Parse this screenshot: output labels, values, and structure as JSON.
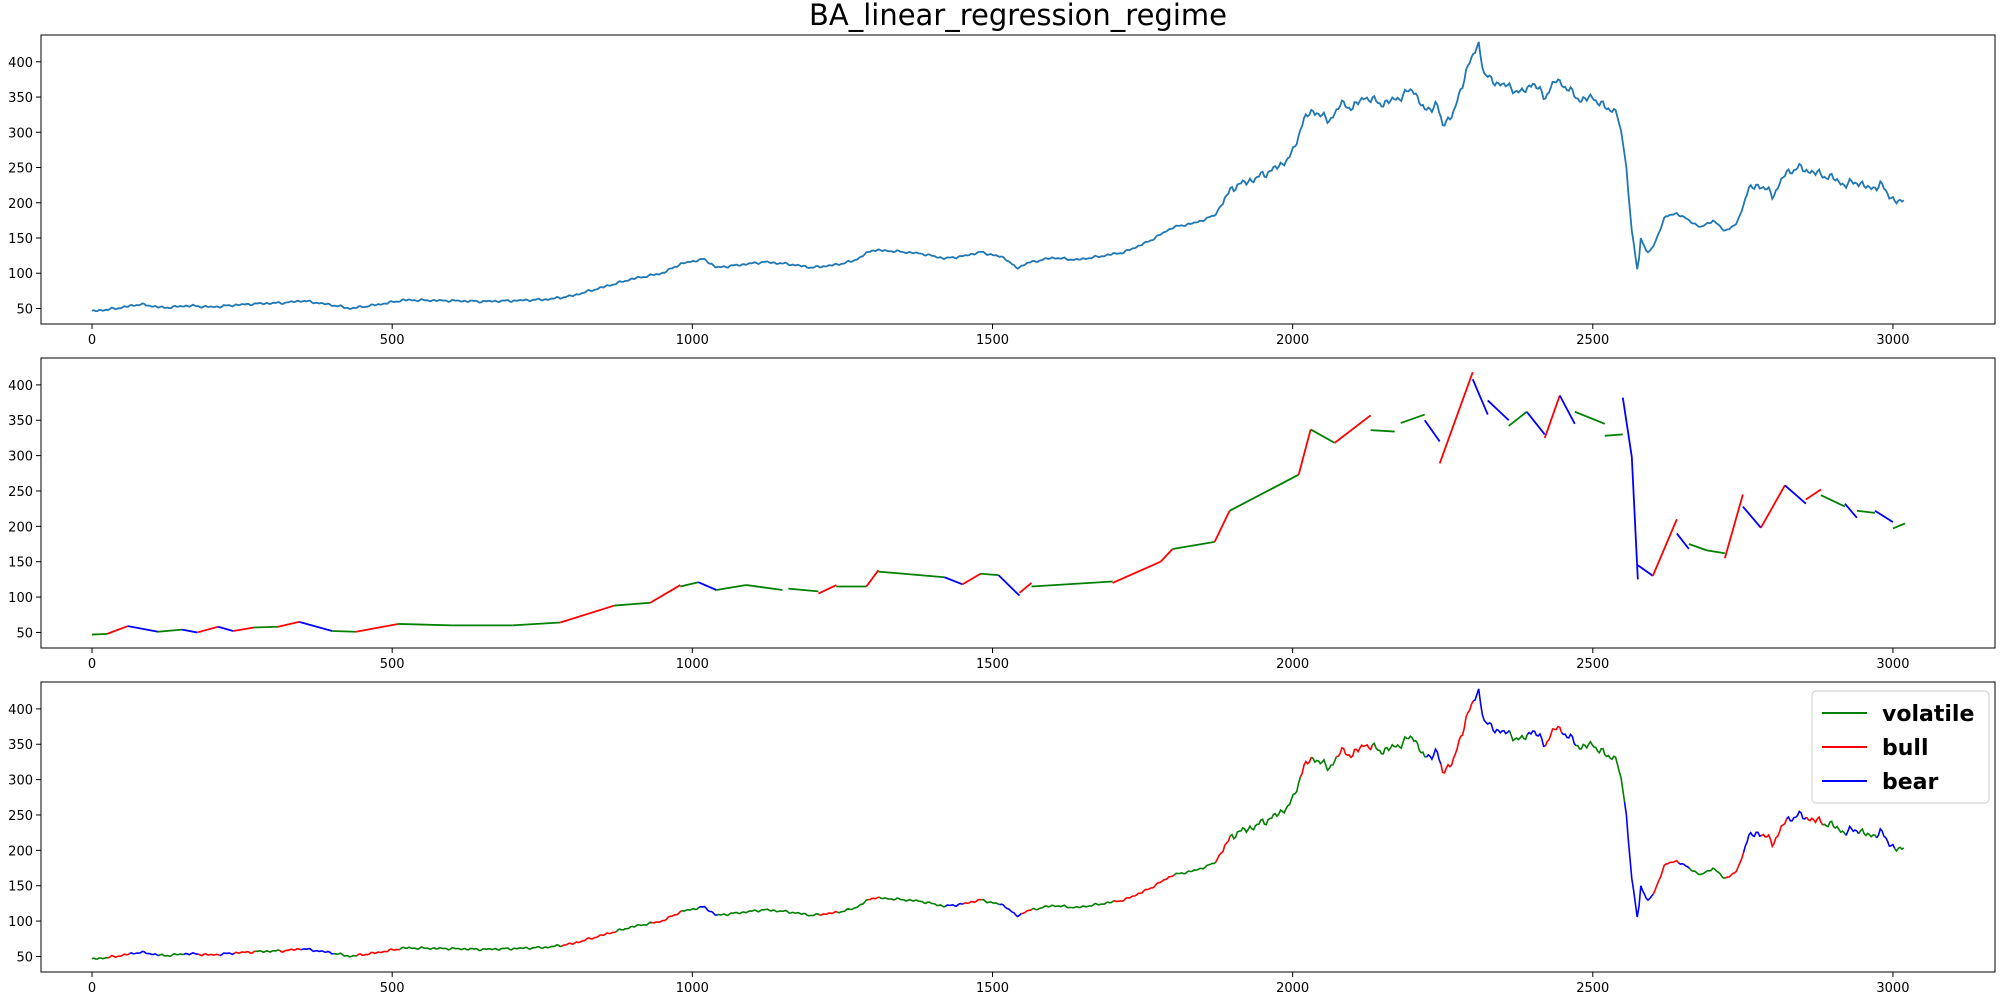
{
  "chart_data": {
    "type": "line",
    "title": "BA_linear_regression_regime",
    "xlim": [
      -85,
      3170
    ],
    "x_ticks": [
      0,
      500,
      1000,
      1500,
      2000,
      2500,
      3000
    ],
    "grid": false,
    "colors": {
      "price": "#1f77b4",
      "volatile": "#008000",
      "bull": "#ff0000",
      "bear": "#0000ff"
    },
    "price_anchors": [
      [
        0,
        46
      ],
      [
        40,
        50
      ],
      [
        80,
        56
      ],
      [
        120,
        51
      ],
      [
        160,
        54
      ],
      [
        200,
        52
      ],
      [
        240,
        55
      ],
      [
        280,
        57
      ],
      [
        320,
        58
      ],
      [
        350,
        61
      ],
      [
        400,
        55
      ],
      [
        430,
        50
      ],
      [
        480,
        56
      ],
      [
        520,
        62
      ],
      [
        600,
        61
      ],
      [
        650,
        60
      ],
      [
        700,
        61
      ],
      [
        760,
        63
      ],
      [
        800,
        68
      ],
      [
        850,
        80
      ],
      [
        900,
        92
      ],
      [
        950,
        100
      ],
      [
        980,
        113
      ],
      [
        1000,
        117
      ],
      [
        1020,
        120
      ],
      [
        1040,
        108
      ],
      [
        1080,
        112
      ],
      [
        1120,
        116
      ],
      [
        1160,
        113
      ],
      [
        1200,
        108
      ],
      [
        1240,
        112
      ],
      [
        1270,
        118
      ],
      [
        1300,
        133
      ],
      [
        1340,
        131
      ],
      [
        1380,
        128
      ],
      [
        1420,
        121
      ],
      [
        1450,
        124
      ],
      [
        1480,
        130
      ],
      [
        1520,
        122
      ],
      [
        1540,
        107
      ],
      [
        1560,
        115
      ],
      [
        1600,
        122
      ],
      [
        1640,
        119
      ],
      [
        1680,
        124
      ],
      [
        1720,
        130
      ],
      [
        1760,
        145
      ],
      [
        1800,
        165
      ],
      [
        1840,
        172
      ],
      [
        1870,
        182
      ],
      [
        1900,
        222
      ],
      [
        1940,
        235
      ],
      [
        1980,
        253
      ],
      [
        2000,
        270
      ],
      [
        2020,
        322
      ],
      [
        2040,
        330
      ],
      [
        2060,
        315
      ],
      [
        2080,
        340
      ],
      [
        2100,
        335
      ],
      [
        2120,
        350
      ],
      [
        2150,
        340
      ],
      [
        2180,
        350
      ],
      [
        2200,
        362
      ],
      [
        2220,
        330
      ],
      [
        2240,
        340
      ],
      [
        2250,
        310
      ],
      [
        2270,
        330
      ],
      [
        2290,
        390
      ],
      [
        2310,
        425
      ],
      [
        2320,
        380
      ],
      [
        2340,
        370
      ],
      [
        2360,
        365
      ],
      [
        2380,
        355
      ],
      [
        2400,
        370
      ],
      [
        2420,
        350
      ],
      [
        2440,
        375
      ],
      [
        2460,
        360
      ],
      [
        2480,
        345
      ],
      [
        2500,
        350
      ],
      [
        2520,
        335
      ],
      [
        2540,
        330
      ],
      [
        2555,
        260
      ],
      [
        2565,
        160
      ],
      [
        2575,
        100
      ],
      [
        2580,
        150
      ],
      [
        2590,
        130
      ],
      [
        2600,
        135
      ],
      [
        2620,
        180
      ],
      [
        2640,
        185
      ],
      [
        2660,
        175
      ],
      [
        2680,
        165
      ],
      [
        2700,
        175
      ],
      [
        2720,
        160
      ],
      [
        2740,
        170
      ],
      [
        2760,
        220
      ],
      [
        2780,
        225
      ],
      [
        2800,
        210
      ],
      [
        2820,
        240
      ],
      [
        2840,
        250
      ],
      [
        2860,
        245
      ],
      [
        2880,
        240
      ],
      [
        2900,
        235
      ],
      [
        2920,
        225
      ],
      [
        2940,
        230
      ],
      [
        2960,
        220
      ],
      [
        2980,
        225
      ],
      [
        3000,
        205
      ],
      [
        3010,
        200
      ],
      [
        3020,
        203
      ]
    ],
    "regime_segments": [
      {
        "regime": "volatile",
        "x": [
          0,
          25
        ],
        "y": [
          47,
          48
        ]
      },
      {
        "regime": "bull",
        "x": [
          25,
          60
        ],
        "y": [
          48,
          59
        ]
      },
      {
        "regime": "bear",
        "x": [
          60,
          110
        ],
        "y": [
          59,
          51
        ]
      },
      {
        "regime": "volatile",
        "x": [
          110,
          150
        ],
        "y": [
          51,
          54
        ]
      },
      {
        "regime": "bear",
        "x": [
          150,
          175
        ],
        "y": [
          54,
          50
        ]
      },
      {
        "regime": "bull",
        "x": [
          175,
          210
        ],
        "y": [
          50,
          58
        ]
      },
      {
        "regime": "bear",
        "x": [
          210,
          235
        ],
        "y": [
          58,
          52
        ]
      },
      {
        "regime": "bull",
        "x": [
          235,
          270
        ],
        "y": [
          52,
          57
        ]
      },
      {
        "regime": "volatile",
        "x": [
          270,
          310
        ],
        "y": [
          57,
          58
        ]
      },
      {
        "regime": "bull",
        "x": [
          310,
          345
        ],
        "y": [
          58,
          65
        ]
      },
      {
        "regime": "bear",
        "x": [
          345,
          400
        ],
        "y": [
          65,
          52
        ]
      },
      {
        "regime": "volatile",
        "x": [
          400,
          440
        ],
        "y": [
          52,
          51
        ]
      },
      {
        "regime": "bull",
        "x": [
          440,
          510
        ],
        "y": [
          51,
          62
        ]
      },
      {
        "regime": "volatile",
        "x": [
          510,
          600
        ],
        "y": [
          62,
          60
        ]
      },
      {
        "regime": "volatile",
        "x": [
          600,
          700
        ],
        "y": [
          60,
          60
        ]
      },
      {
        "regime": "volatile",
        "x": [
          700,
          780
        ],
        "y": [
          60,
          64
        ]
      },
      {
        "regime": "bull",
        "x": [
          780,
          870
        ],
        "y": [
          64,
          88
        ]
      },
      {
        "regime": "volatile",
        "x": [
          870,
          930
        ],
        "y": [
          88,
          92
        ]
      },
      {
        "regime": "bull",
        "x": [
          930,
          980
        ],
        "y": [
          92,
          117
        ]
      },
      {
        "regime": "volatile",
        "x": [
          980,
          1010
        ],
        "y": [
          115,
          121
        ]
      },
      {
        "regime": "bear",
        "x": [
          1010,
          1040
        ],
        "y": [
          121,
          110
        ]
      },
      {
        "regime": "volatile",
        "x": [
          1040,
          1090
        ],
        "y": [
          110,
          117
        ]
      },
      {
        "regime": "volatile",
        "x": [
          1090,
          1150
        ],
        "y": [
          117,
          110
        ]
      },
      {
        "regime": "volatile",
        "x": [
          1160,
          1210
        ],
        "y": [
          112,
          108
        ]
      },
      {
        "regime": "bull",
        "x": [
          1210,
          1240
        ],
        "y": [
          105,
          117
        ]
      },
      {
        "regime": "volatile",
        "x": [
          1240,
          1290
        ],
        "y": [
          115,
          115
        ]
      },
      {
        "regime": "bull",
        "x": [
          1290,
          1310
        ],
        "y": [
          115,
          138
        ]
      },
      {
        "regime": "volatile",
        "x": [
          1310,
          1420
        ],
        "y": [
          136,
          128
        ]
      },
      {
        "regime": "bear",
        "x": [
          1420,
          1450
        ],
        "y": [
          128,
          118
        ]
      },
      {
        "regime": "bull",
        "x": [
          1450,
          1480
        ],
        "y": [
          118,
          133
        ]
      },
      {
        "regime": "volatile",
        "x": [
          1480,
          1510
        ],
        "y": [
          133,
          131
        ]
      },
      {
        "regime": "bear",
        "x": [
          1510,
          1545
        ],
        "y": [
          131,
          102
        ]
      },
      {
        "regime": "bull",
        "x": [
          1545,
          1565
        ],
        "y": [
          106,
          120
        ]
      },
      {
        "regime": "volatile",
        "x": [
          1565,
          1700
        ],
        "y": [
          115,
          122
        ]
      },
      {
        "regime": "bull",
        "x": [
          1700,
          1780
        ],
        "y": [
          120,
          150
        ]
      },
      {
        "regime": "bull",
        "x": [
          1780,
          1800
        ],
        "y": [
          150,
          168
        ]
      },
      {
        "regime": "volatile",
        "x": [
          1800,
          1870
        ],
        "y": [
          168,
          178
        ]
      },
      {
        "regime": "bull",
        "x": [
          1870,
          1895
        ],
        "y": [
          178,
          222
        ]
      },
      {
        "regime": "volatile",
        "x": [
          1895,
          2010
        ],
        "y": [
          222,
          273
        ]
      },
      {
        "regime": "bull",
        "x": [
          2010,
          2030
        ],
        "y": [
          273,
          337
        ]
      },
      {
        "regime": "volatile",
        "x": [
          2030,
          2070
        ],
        "y": [
          337,
          318
        ]
      },
      {
        "regime": "bull",
        "x": [
          2070,
          2130
        ],
        "y": [
          318,
          357
        ]
      },
      {
        "regime": "volatile",
        "x": [
          2130,
          2170
        ],
        "y": [
          336,
          334
        ]
      },
      {
        "regime": "volatile",
        "x": [
          2180,
          2220
        ],
        "y": [
          346,
          358
        ]
      },
      {
        "regime": "bear",
        "x": [
          2220,
          2245
        ],
        "y": [
          350,
          320
        ]
      },
      {
        "regime": "bull",
        "x": [
          2245,
          2300
        ],
        "y": [
          289,
          418
        ]
      },
      {
        "regime": "bear",
        "x": [
          2300,
          2325
        ],
        "y": [
          408,
          358
        ]
      },
      {
        "regime": "bear",
        "x": [
          2325,
          2360
        ],
        "y": [
          378,
          350
        ]
      },
      {
        "regime": "volatile",
        "x": [
          2360,
          2390
        ],
        "y": [
          342,
          362
        ]
      },
      {
        "regime": "bear",
        "x": [
          2390,
          2420
        ],
        "y": [
          362,
          330
        ]
      },
      {
        "regime": "bull",
        "x": [
          2420,
          2445
        ],
        "y": [
          325,
          385
        ]
      },
      {
        "regime": "bear",
        "x": [
          2445,
          2470
        ],
        "y": [
          385,
          345
        ]
      },
      {
        "regime": "volatile",
        "x": [
          2470,
          2520
        ],
        "y": [
          362,
          345
        ]
      },
      {
        "regime": "volatile",
        "x": [
          2520,
          2550
        ],
        "y": [
          328,
          330
        ]
      },
      {
        "regime": "bear",
        "x": [
          2550,
          2565
        ],
        "y": [
          382,
          298
        ]
      },
      {
        "regime": "bear",
        "x": [
          2565,
          2575
        ],
        "y": [
          298,
          125
        ]
      },
      {
        "regime": "bear",
        "x": [
          2575,
          2600
        ],
        "y": [
          145,
          130
        ]
      },
      {
        "regime": "bull",
        "x": [
          2600,
          2640
        ],
        "y": [
          130,
          210
        ]
      },
      {
        "regime": "bear",
        "x": [
          2640,
          2660
        ],
        "y": [
          190,
          168
        ]
      },
      {
        "regime": "volatile",
        "x": [
          2660,
          2690
        ],
        "y": [
          175,
          166
        ]
      },
      {
        "regime": "volatile",
        "x": [
          2690,
          2720
        ],
        "y": [
          166,
          162
        ]
      },
      {
        "regime": "bull",
        "x": [
          2720,
          2750
        ],
        "y": [
          155,
          245
        ]
      },
      {
        "regime": "bear",
        "x": [
          2750,
          2780
        ],
        "y": [
          228,
          198
        ]
      },
      {
        "regime": "bull",
        "x": [
          2780,
          2820
        ],
        "y": [
          198,
          258
        ]
      },
      {
        "regime": "bear",
        "x": [
          2820,
          2855
        ],
        "y": [
          258,
          232
        ]
      },
      {
        "regime": "bull",
        "x": [
          2855,
          2880
        ],
        "y": [
          238,
          252
        ]
      },
      {
        "regime": "volatile",
        "x": [
          2880,
          2920
        ],
        "y": [
          244,
          228
        ]
      },
      {
        "regime": "bear",
        "x": [
          2920,
          2940
        ],
        "y": [
          232,
          212
        ]
      },
      {
        "regime": "volatile",
        "x": [
          2940,
          2970
        ],
        "y": [
          222,
          219
        ]
      },
      {
        "regime": "bear",
        "x": [
          2970,
          3000
        ],
        "y": [
          222,
          206
        ]
      },
      {
        "regime": "volatile",
        "x": [
          3000,
          3020
        ],
        "y": [
          197,
          204
        ]
      }
    ],
    "subplots": [
      {
        "name": "price",
        "ylim": [
          28,
          438
        ],
        "y_ticks": [
          50,
          100,
          150,
          200,
          250,
          300,
          350,
          400
        ]
      },
      {
        "name": "regression_segments",
        "ylim": [
          28,
          438
        ],
        "y_ticks": [
          50,
          100,
          150,
          200,
          250,
          300,
          350,
          400
        ]
      },
      {
        "name": "price_by_regime",
        "ylim": [
          28,
          438
        ],
        "y_ticks": [
          50,
          100,
          150,
          200,
          250,
          300,
          350,
          400
        ]
      }
    ],
    "legend": {
      "placement": "upper right",
      "entries": [
        {
          "label": "volatile",
          "regime": "volatile"
        },
        {
          "label": "bull",
          "regime": "bull"
        },
        {
          "label": "bear",
          "regime": "bear"
        }
      ]
    }
  }
}
